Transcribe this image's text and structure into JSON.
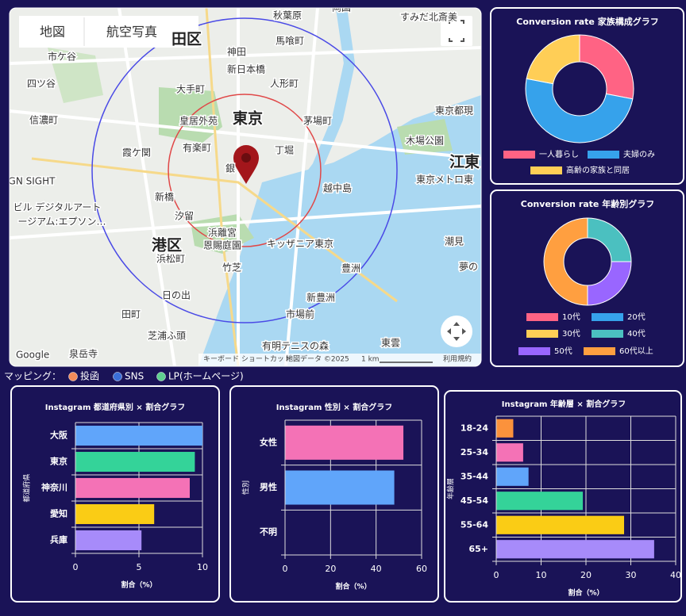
{
  "map": {
    "buttons": [
      "地図",
      "航空写真"
    ],
    "labels": [
      "秋葉原",
      "両国",
      "すみだ北斎美",
      "田区",
      "神田",
      "馬喰町",
      "市ケ谷",
      "新日本橋",
      "人形町",
      "四ツ谷",
      "大手町",
      "皇居外苑",
      "東京",
      "茅場町",
      "東京都現",
      "信濃町",
      "木場公園",
      "霞ケ関",
      "有楽町",
      "丁堀",
      "江東",
      "銀",
      "東京メトロ東",
      "GN SIGHT",
      "越中島",
      "新橋",
      "ビル デジタルアート",
      "ージアム:エプソン…",
      "汐留",
      "浜離宮",
      "恩賜庭園",
      "港区",
      "キッザニア東京",
      "潮見",
      "浜松町",
      "竹芝",
      "豊洲",
      "夢の",
      "日の出",
      "新豊洲",
      "田町",
      "市場前",
      "芝浦ふ頭",
      "有明テニスの森",
      "東雲",
      "泉岳寺"
    ],
    "google": "Google",
    "footer": [
      "キーボード ショートカット",
      "地図データ ©2025",
      "1 km",
      "利用規約"
    ]
  },
  "legend": {
    "title": "マッピング：",
    "items": [
      {
        "name": "投函",
        "color": "#f28b5b"
      },
      {
        "name": "SNS",
        "color": "#3b6fd8"
      },
      {
        "name": "LP(ホームページ)",
        "color": "#5fcf8f"
      }
    ]
  },
  "chart_data": [
    {
      "type": "pie",
      "title": "Conversion rate 家族構成グラフ",
      "donut": true,
      "categories": [
        "一人暮らし",
        "夫婦のみ",
        "高齢の家族と同居"
      ],
      "values": [
        28,
        50,
        22
      ],
      "colors": [
        "#ff6384",
        "#36a2eb",
        "#ffce56"
      ]
    },
    {
      "type": "pie",
      "title": "Conversion rate 年齢別グラフ",
      "donut": true,
      "categories": [
        "10代",
        "20代",
        "30代",
        "40代",
        "50代",
        "60代以上"
      ],
      "values": [
        0,
        0,
        0,
        25,
        25,
        50
      ],
      "colors": [
        "#ff6384",
        "#36a2eb",
        "#ffce56",
        "#4bc0c0",
        "#9966ff",
        "#ff9f40"
      ]
    },
    {
      "type": "hbar",
      "title": "Instagram 都道府県別 × 割合グラフ",
      "x_label": "割合（%）",
      "y_label": "都道府県",
      "categories": [
        "大阪",
        "東京",
        "神奈川",
        "愛知",
        "兵庫"
      ],
      "values": [
        10,
        9.4,
        9.0,
        6.2,
        5.2
      ],
      "colors": [
        "#60a5fa",
        "#34d399",
        "#f472b6",
        "#facc15",
        "#a78bfa"
      ],
      "xlim": [
        0,
        10
      ],
      "xticks": [
        0,
        5,
        10
      ],
      "grid": true
    },
    {
      "type": "hbar",
      "title": "Instagram 性別 × 割合グラフ",
      "x_label": "割合（%）",
      "y_label": "性別",
      "categories": [
        "女性",
        "男性",
        "不明"
      ],
      "values": [
        52,
        48,
        0
      ],
      "colors": [
        "#f472b6",
        "#60a5fa",
        "#a78bfa"
      ],
      "xlim": [
        0,
        60
      ],
      "xticks": [
        0,
        20,
        40,
        60
      ],
      "grid": true
    },
    {
      "type": "hbar",
      "title": "Instagram 年齢層 × 割合グラフ",
      "x_label": "割合（%）",
      "y_label": "年齢層",
      "categories": [
        "18-24",
        "25-34",
        "35-44",
        "45-54",
        "55-64",
        "65+"
      ],
      "values": [
        3.8,
        6,
        7.2,
        19.3,
        28.5,
        35.2
      ],
      "colors": [
        "#fb923c",
        "#f472b6",
        "#60a5fa",
        "#34d399",
        "#facc15",
        "#a78bfa"
      ],
      "xlim": [
        0,
        40
      ],
      "xticks": [
        0,
        10,
        20,
        30,
        40
      ],
      "grid": true
    }
  ]
}
